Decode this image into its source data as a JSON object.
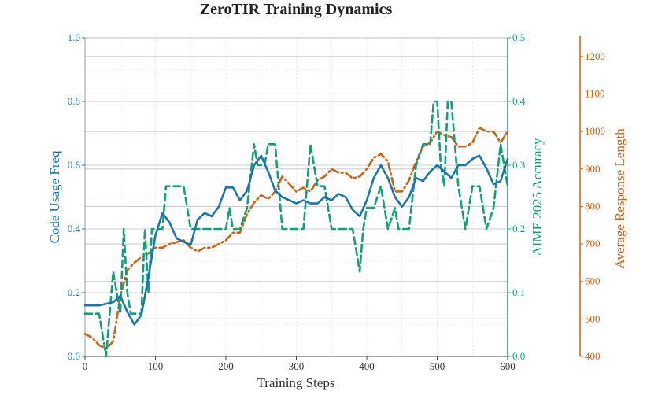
{
  "colors": {
    "code_usage": "#1f74aa",
    "aime": "#169d7a",
    "resp_len": "#c9631a",
    "grid": "#e3e3e3",
    "gray_line": "#cdcdcd",
    "axis": "#444444"
  },
  "chart_data": {
    "type": "line",
    "title": "ZeroTIR Training Dynamics",
    "xlabel": "Training Steps",
    "xlim": [
      0,
      600
    ],
    "x_ticks": [
      "0",
      "100",
      "200",
      "300",
      "400",
      "500",
      "600"
    ],
    "axes": {
      "left": {
        "label": "Code Usage Freq",
        "lim": [
          0,
          1.0
        ],
        "ticks": [
          "0.0",
          "0.2",
          "0.4",
          "0.6",
          "0.8",
          "1.0"
        ]
      },
      "right1": {
        "label": "AIME 2025 Accuracy",
        "lim": [
          0,
          0.5
        ],
        "ticks": [
          "0.0",
          "0.1",
          "0.2",
          "0.3",
          "0.4",
          "0.5"
        ]
      },
      "right2": {
        "label": "Average Response Length",
        "lim": [
          400,
          1250
        ],
        "ticks": [
          "400",
          "500",
          "600",
          "700",
          "800",
          "900",
          "1000",
          "1100",
          "1200"
        ]
      }
    },
    "grid": true,
    "series": [
      {
        "axis": "left",
        "style": "solid",
        "color_key": "code_usage",
        "x": [
          0,
          10,
          20,
          30,
          40,
          50,
          60,
          70,
          80,
          90,
          100,
          110,
          120,
          130,
          140,
          150,
          160,
          170,
          180,
          190,
          200,
          210,
          220,
          230,
          240,
          250,
          260,
          270,
          280,
          290,
          300,
          310,
          320,
          330,
          340,
          350,
          360,
          370,
          380,
          390,
          400,
          410,
          420,
          430,
          440,
          450,
          460,
          470,
          480,
          490,
          500,
          510,
          520,
          530,
          540,
          550,
          560,
          570,
          580,
          590,
          600
        ],
        "values": [
          0.16,
          0.16,
          0.16,
          0.165,
          0.17,
          0.19,
          0.14,
          0.1,
          0.13,
          0.25,
          0.38,
          0.45,
          0.42,
          0.37,
          0.36,
          0.35,
          0.43,
          0.45,
          0.44,
          0.47,
          0.53,
          0.53,
          0.49,
          0.52,
          0.6,
          0.63,
          0.58,
          0.52,
          0.5,
          0.49,
          0.48,
          0.49,
          0.48,
          0.48,
          0.5,
          0.49,
          0.51,
          0.5,
          0.46,
          0.44,
          0.49,
          0.56,
          0.6,
          0.56,
          0.5,
          0.47,
          0.5,
          0.56,
          0.55,
          0.58,
          0.6,
          0.58,
          0.56,
          0.6,
          0.6,
          0.62,
          0.63,
          0.59,
          0.54,
          0.55,
          0.62
        ]
      },
      {
        "axis": "right1",
        "style": "dashed",
        "color_key": "aime",
        "x": [
          0,
          20,
          25,
          30,
          35,
          40,
          45,
          50,
          55,
          60,
          65,
          70,
          75,
          80,
          85,
          90,
          95,
          100,
          110,
          115,
          120,
          130,
          140,
          150,
          160,
          170,
          180,
          190,
          200,
          205,
          210,
          220,
          230,
          240,
          245,
          250,
          255,
          260,
          265,
          270,
          280,
          290,
          300,
          310,
          320,
          325,
          330,
          340,
          350,
          360,
          370,
          380,
          390,
          395,
          400,
          410,
          420,
          430,
          440,
          445,
          450,
          460,
          470,
          480,
          490,
          495,
          500,
          505,
          510,
          515,
          520,
          525,
          530,
          540,
          550,
          560,
          570,
          580,
          590,
          600
        ],
        "values": [
          0.067,
          0.067,
          0.033,
          0.0,
          0.067,
          0.133,
          0.1,
          0.067,
          0.2,
          0.1,
          0.067,
          0.067,
          0.067,
          0.067,
          0.2,
          0.1,
          0.2,
          0.2,
          0.2,
          0.267,
          0.267,
          0.267,
          0.267,
          0.2,
          0.2,
          0.2,
          0.2,
          0.2,
          0.2,
          0.233,
          0.2,
          0.2,
          0.233,
          0.333,
          0.3,
          0.3,
          0.3,
          0.333,
          0.333,
          0.333,
          0.2,
          0.2,
          0.2,
          0.2,
          0.333,
          0.3,
          0.267,
          0.267,
          0.2,
          0.2,
          0.2,
          0.2,
          0.133,
          0.2,
          0.233,
          0.233,
          0.267,
          0.2,
          0.233,
          0.2,
          0.2,
          0.2,
          0.3,
          0.333,
          0.333,
          0.4,
          0.4,
          0.3,
          0.267,
          0.4,
          0.4,
          0.333,
          0.267,
          0.2,
          0.267,
          0.267,
          0.2,
          0.233,
          0.333,
          0.267
        ]
      },
      {
        "axis": "right2",
        "style": "dashdot",
        "color_key": "resp_len",
        "x": [
          0,
          10,
          20,
          30,
          40,
          50,
          60,
          70,
          80,
          90,
          100,
          110,
          120,
          130,
          140,
          150,
          160,
          170,
          180,
          190,
          200,
          210,
          220,
          230,
          240,
          250,
          260,
          270,
          280,
          290,
          300,
          310,
          320,
          330,
          340,
          350,
          360,
          370,
          380,
          390,
          400,
          410,
          420,
          430,
          440,
          450,
          460,
          470,
          480,
          490,
          500,
          510,
          520,
          530,
          540,
          550,
          560,
          570,
          580,
          590,
          600
        ],
        "values": [
          460,
          450,
          430,
          420,
          440,
          560,
          630,
          650,
          665,
          675,
          690,
          690,
          700,
          705,
          710,
          690,
          680,
          690,
          690,
          700,
          710,
          730,
          730,
          780,
          810,
          830,
          820,
          840,
          880,
          860,
          840,
          850,
          840,
          870,
          880,
          900,
          890,
          890,
          875,
          880,
          900,
          930,
          940,
          920,
          840,
          840,
          870,
          920,
          960,
          970,
          1000,
          990,
          985,
          960,
          960,
          970,
          1010,
          1000,
          1000,
          970,
          1000
        ]
      }
    ]
  }
}
